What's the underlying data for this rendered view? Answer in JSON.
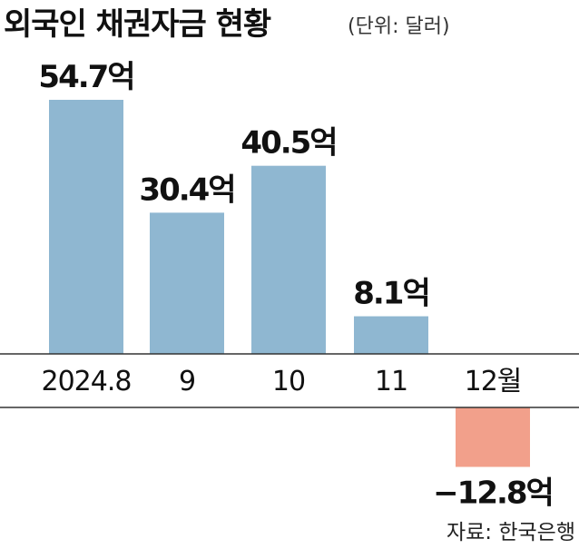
{
  "chart_data": {
    "type": "bar",
    "title": "외국인 채권자금 현황",
    "unit": "(단위: 달러)",
    "categories": [
      "2024.8",
      "9",
      "10",
      "11",
      "12월"
    ],
    "values": [
      54.7,
      30.4,
      40.5,
      8.1,
      -12.8
    ],
    "value_labels": [
      "54.7억",
      "30.4억",
      "40.5억",
      "8.1억",
      "−12.8억"
    ],
    "source": "자료: 한국은행",
    "colors": {
      "positive": "#8fb7d1",
      "negative": "#f2a08b",
      "axis": "#333333"
    }
  }
}
